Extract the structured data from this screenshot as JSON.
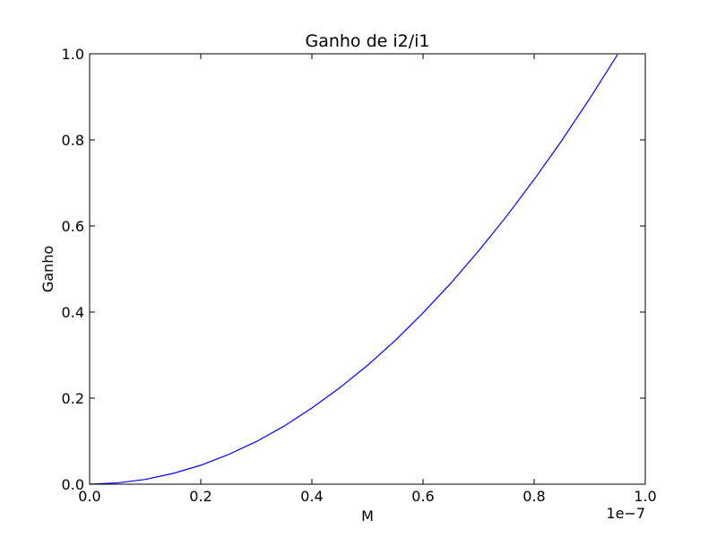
{
  "chart_data": {
    "type": "line",
    "title": "Ganho de i2/i1",
    "xlabel": "M",
    "ylabel": "Ganho",
    "x_offset_label": "1e−7",
    "xlim": [
      0.0,
      1.0
    ],
    "ylim": [
      0.0,
      1.0
    ],
    "x_ticks": [
      0.0,
      0.2,
      0.4,
      0.6,
      0.8,
      1.0
    ],
    "y_ticks": [
      0.0,
      0.2,
      0.4,
      0.6,
      0.8,
      1.0
    ],
    "x_tick_labels": [
      "0.0",
      "0.2",
      "0.4",
      "0.6",
      "0.8",
      "1.0"
    ],
    "y_tick_labels": [
      "0.0",
      "0.2",
      "0.4",
      "0.6",
      "0.8",
      "1.0"
    ],
    "grid": false,
    "series": [
      {
        "color": "#0000ff",
        "x": [
          0.0,
          0.05,
          0.1,
          0.15,
          0.2,
          0.25,
          0.3,
          0.35,
          0.4,
          0.45,
          0.5,
          0.55,
          0.6,
          0.65,
          0.7,
          0.75,
          0.8,
          0.85,
          0.9,
          0.95
        ],
        "y": [
          0.0,
          0.003,
          0.011,
          0.025,
          0.044,
          0.069,
          0.099,
          0.135,
          0.177,
          0.224,
          0.276,
          0.334,
          0.398,
          0.467,
          0.542,
          0.622,
          0.708,
          0.799,
          0.896,
          0.998
        ]
      }
    ]
  }
}
